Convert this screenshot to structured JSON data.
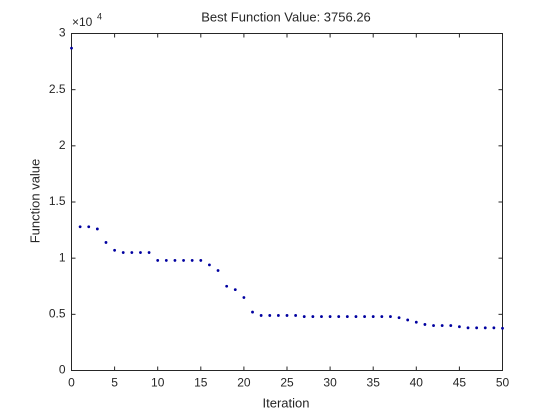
{
  "chart_data": {
    "type": "scatter",
    "title": "Best Function Value: 3756.26",
    "x_label": "Iteration",
    "y_label": "Function value",
    "y_exponent_base": "×10",
    "y_exponent_power": "4",
    "x": [
      0,
      1,
      2,
      3,
      4,
      5,
      6,
      7,
      8,
      9,
      10,
      11,
      12,
      13,
      14,
      15,
      16,
      17,
      18,
      19,
      20,
      21,
      22,
      23,
      24,
      25,
      26,
      27,
      28,
      29,
      30,
      31,
      32,
      33,
      34,
      35,
      36,
      37,
      38,
      39,
      40,
      41,
      42,
      43,
      44,
      45,
      46,
      47,
      48,
      49,
      50
    ],
    "series": [
      {
        "color": "#0000a0",
        "values": [
          2.87,
          1.28,
          1.28,
          1.26,
          1.14,
          1.07,
          1.05,
          1.05,
          1.05,
          1.05,
          0.98,
          0.98,
          0.98,
          0.98,
          0.98,
          0.98,
          0.94,
          0.89,
          0.75,
          0.72,
          0.65,
          0.52,
          0.49,
          0.49,
          0.49,
          0.49,
          0.49,
          0.48,
          0.48,
          0.48,
          0.48,
          0.48,
          0.48,
          0.48,
          0.48,
          0.48,
          0.48,
          0.48,
          0.47,
          0.45,
          0.43,
          0.41,
          0.4,
          0.4,
          0.4,
          0.39,
          0.38,
          0.38,
          0.38,
          0.38,
          0.3756
        ]
      }
    ],
    "xlim": [
      0,
      50
    ],
    "xticks": [
      0,
      5,
      10,
      15,
      20,
      25,
      30,
      35,
      40,
      45,
      50
    ],
    "ylim": [
      0,
      3
    ],
    "yticks": [
      0,
      0.5,
      1,
      1.5,
      2,
      2.5,
      3
    ]
  }
}
